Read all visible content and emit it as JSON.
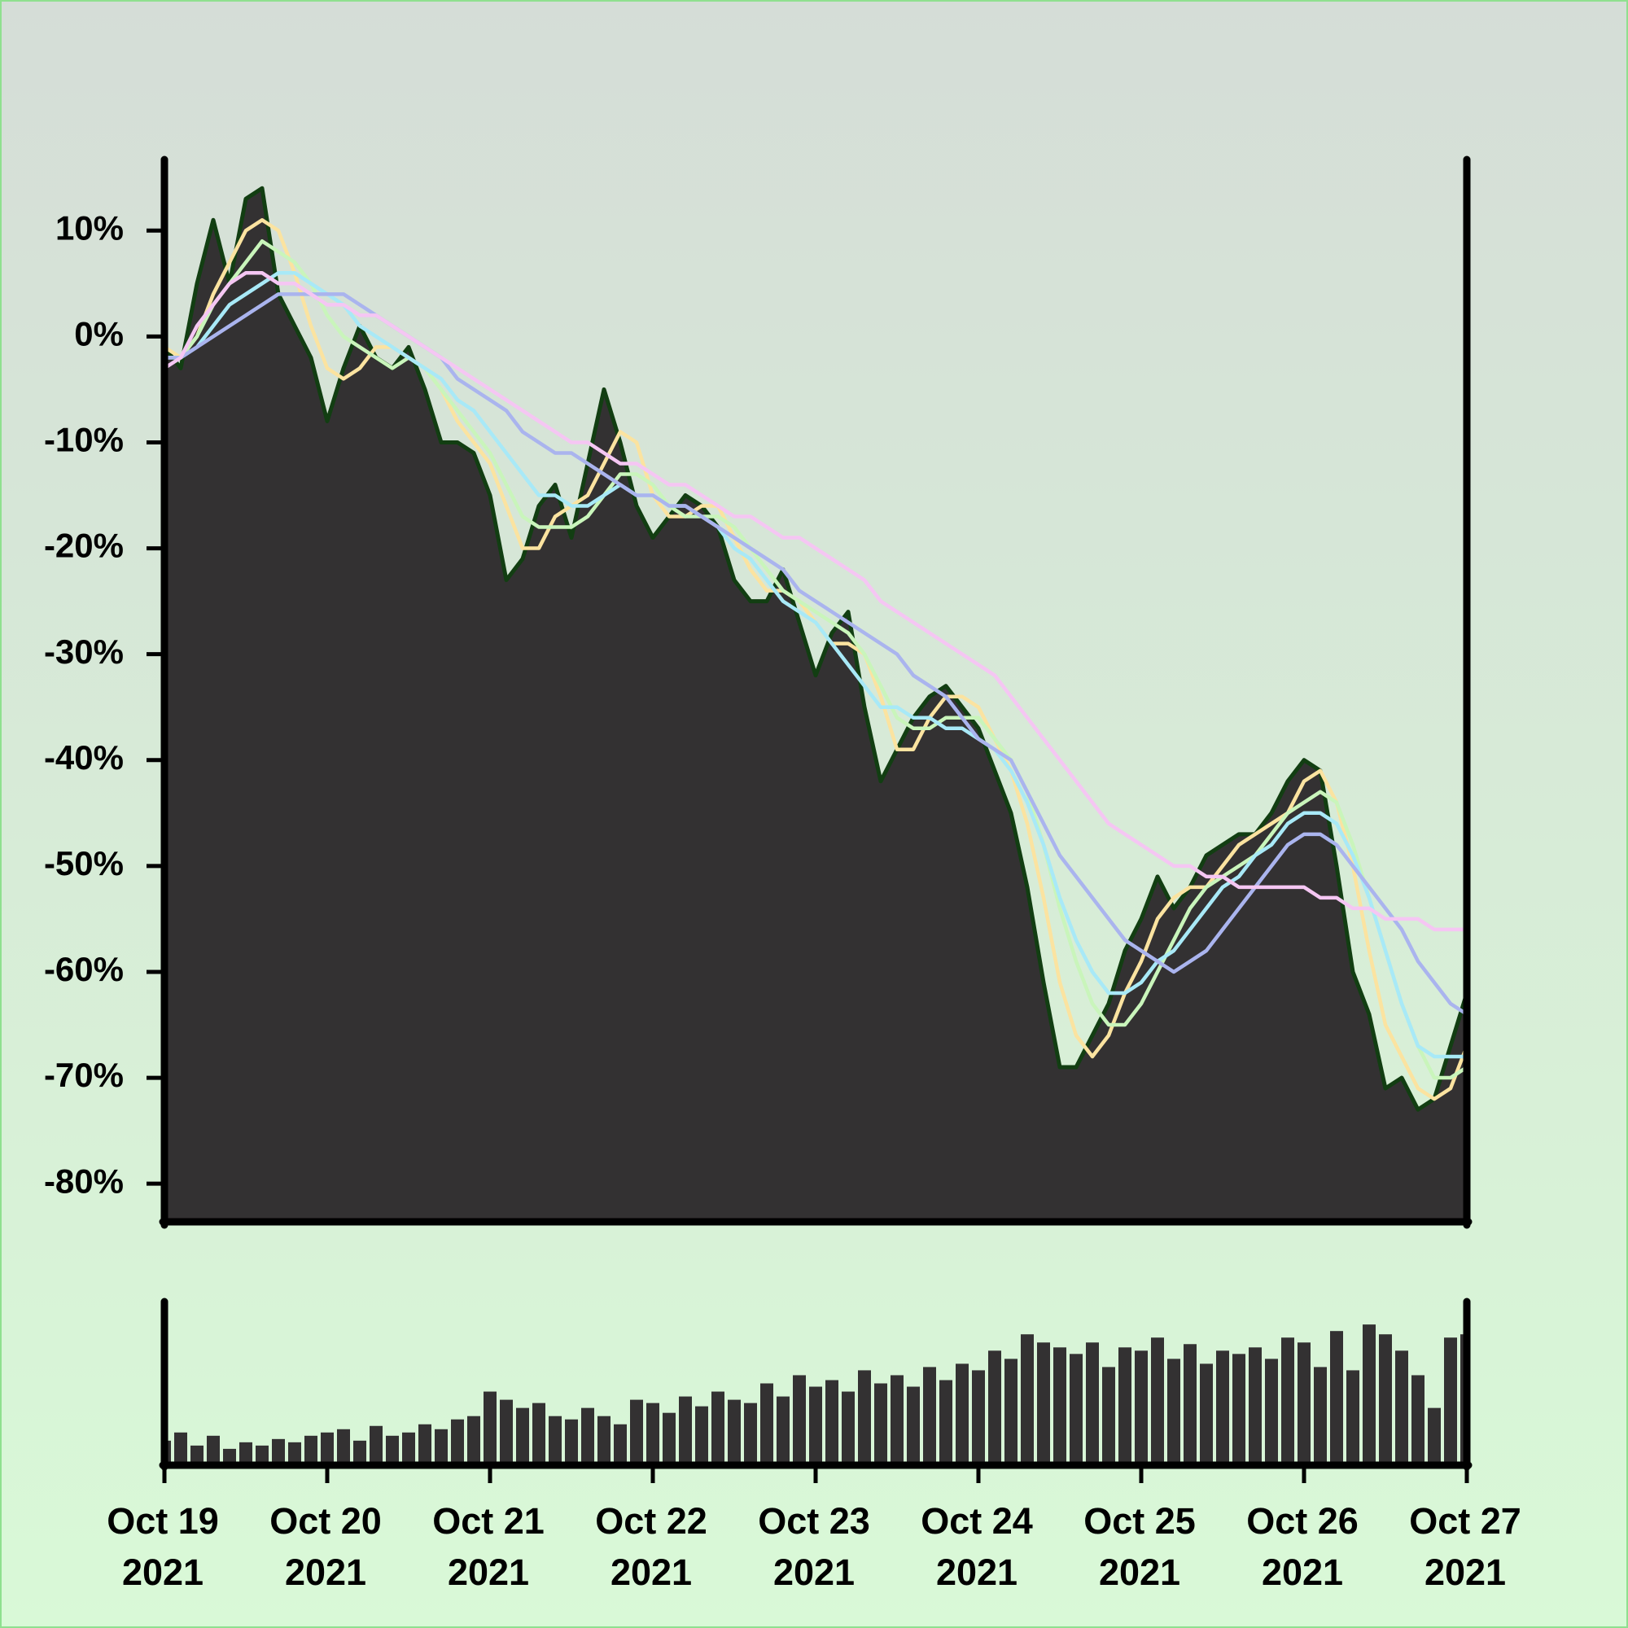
{
  "chart_data": {
    "type": "area",
    "x": [
      0,
      0.1,
      0.2,
      0.3,
      0.4,
      0.5,
      0.6,
      0.7,
      0.8,
      0.9,
      1,
      1.1,
      1.2,
      1.3,
      1.4,
      1.5,
      1.6,
      1.7,
      1.8,
      1.9,
      2,
      2.1,
      2.2,
      2.3,
      2.4,
      2.5,
      2.6,
      2.7,
      2.8,
      2.9,
      3,
      3.1,
      3.2,
      3.3,
      3.4,
      3.5,
      3.6,
      3.7,
      3.8,
      3.9,
      4,
      4.1,
      4.2,
      4.3,
      4.4,
      4.5,
      4.6,
      4.7,
      4.8,
      4.9,
      5,
      5.1,
      5.2,
      5.3,
      5.4,
      5.5,
      5.6,
      5.7,
      5.8,
      5.9,
      6,
      6.1,
      6.2,
      6.3,
      6.4,
      6.5,
      6.6,
      6.7,
      6.8,
      6.9,
      7,
      7.1,
      7.2,
      7.3,
      7.4,
      7.5,
      7.6,
      7.7,
      7.8,
      7.9,
      8
    ],
    "values": [
      -1,
      -3,
      5,
      11,
      5,
      13,
      14,
      4,
      1,
      -2,
      -8,
      -3,
      1,
      -2,
      -3,
      -1,
      -5,
      -10,
      -10,
      -11,
      -15,
      -23,
      -21,
      -16,
      -14,
      -19,
      -12,
      -5,
      -10,
      -16,
      -19,
      -17,
      -15,
      -16,
      -18,
      -23,
      -25,
      -25,
      -22,
      -27,
      -32,
      -28,
      -26,
      -35,
      -42,
      -39,
      -36,
      -34,
      -33,
      -35,
      -37,
      -41,
      -45,
      -52,
      -61,
      -69,
      -69,
      -66,
      -63,
      -58,
      -55,
      -51,
      -54,
      -52,
      -49,
      -48,
      -47,
      -47,
      -45,
      -42,
      -40,
      -41,
      -50,
      -60,
      -64,
      -71,
      -70,
      -73,
      -72,
      -67,
      -62
    ],
    "color": "#333132",
    "line_color": "#123e12",
    "series": [
      {
        "color": "#fbe3a0",
        "values": [
          -1,
          -2,
          0,
          4,
          7,
          10,
          11,
          10,
          6,
          1,
          -3,
          -4,
          -3,
          -1,
          -1,
          -2,
          -3,
          -5,
          -8,
          -10,
          -12,
          -16,
          -20,
          -20,
          -17,
          -16,
          -15,
          -12,
          -9,
          -10,
          -15,
          -17,
          -17,
          -16,
          -16,
          -19,
          -22,
          -24,
          -24,
          -25,
          -27,
          -29,
          -29,
          -30,
          -34,
          -39,
          -39,
          -36,
          -34,
          -34,
          -35,
          -38,
          -41,
          -46,
          -53,
          -61,
          -66,
          -68,
          -66,
          -62,
          -59,
          -55,
          -53,
          -52,
          -52,
          -50,
          -48,
          -47,
          -46,
          -45,
          -42,
          -41,
          -44,
          -50,
          -58,
          -65,
          -68,
          -71,
          -72,
          -71,
          -67
        ]
      },
      {
        "color": "#c9f5bb",
        "values": [
          -2,
          -2,
          0,
          3,
          5,
          7,
          9,
          8,
          7,
          5,
          2,
          0,
          -1,
          -2,
          -3,
          -2,
          -3,
          -5,
          -7,
          -9,
          -11,
          -14,
          -17,
          -18,
          -18,
          -18,
          -17,
          -15,
          -13,
          -13,
          -14,
          -16,
          -17,
          -17,
          -17,
          -18,
          -20,
          -22,
          -24,
          -25,
          -26,
          -27,
          -28,
          -30,
          -33,
          -36,
          -37,
          -37,
          -36,
          -36,
          -36,
          -38,
          -40,
          -43,
          -48,
          -54,
          -59,
          -63,
          -65,
          -65,
          -63,
          -60,
          -57,
          -54,
          -52,
          -51,
          -50,
          -49,
          -47,
          -45,
          -44,
          -43,
          -44,
          -48,
          -53,
          -58,
          -63,
          -67,
          -70,
          -70,
          -69
        ]
      },
      {
        "color": "#a8e9f7",
        "values": [
          -2,
          -2,
          -1,
          1,
          3,
          4,
          5,
          6,
          6,
          5,
          4,
          3,
          1,
          0,
          -1,
          -2,
          -3,
          -4,
          -6,
          -7,
          -9,
          -11,
          -13,
          -15,
          -15,
          -16,
          -16,
          -15,
          -14,
          -15,
          -15,
          -16,
          -16,
          -17,
          -18,
          -20,
          -21,
          -23,
          -25,
          -26,
          -27,
          -29,
          -31,
          -33,
          -35,
          -35,
          -36,
          -36,
          -37,
          -37,
          -38,
          -39,
          -41,
          -44,
          -48,
          -53,
          -57,
          -60,
          -62,
          -62,
          -61,
          -59,
          -58,
          -56,
          -54,
          -52,
          -51,
          -49,
          -48,
          -46,
          -45,
          -45,
          -46,
          -49,
          -53,
          -58,
          -63,
          -67,
          -68,
          -68,
          -68
        ]
      },
      {
        "color": "#aab4ee",
        "values": [
          -2,
          -2,
          -1,
          0,
          1,
          2,
          3,
          4,
          4,
          4,
          4,
          4,
          3,
          2,
          1,
          0,
          -1,
          -2,
          -4,
          -5,
          -6,
          -7,
          -9,
          -10,
          -11,
          -11,
          -12,
          -13,
          -14,
          -15,
          -15,
          -16,
          -16,
          -17,
          -18,
          -19,
          -20,
          -21,
          -22,
          -24,
          -25,
          -26,
          -27,
          -28,
          -29,
          -30,
          -32,
          -33,
          -34,
          -36,
          -38,
          -39,
          -40,
          -43,
          -46,
          -49,
          -51,
          -53,
          -55,
          -57,
          -58,
          -59,
          -60,
          -59,
          -58,
          -56,
          -54,
          -52,
          -50,
          -48,
          -47,
          -47,
          -48,
          -50,
          -52,
          -54,
          -56,
          -59,
          -61,
          -63,
          -64
        ]
      },
      {
        "color": "#f5c6f3",
        "values": [
          -3,
          -2,
          1,
          3,
          5,
          6,
          6,
          5,
          5,
          4,
          3,
          3,
          2,
          2,
          1,
          0,
          -1,
          -2,
          -3,
          -4,
          -5,
          -6,
          -7,
          -8,
          -9,
          -10,
          -10,
          -11,
          -12,
          -12,
          -13,
          -14,
          -14,
          -15,
          -16,
          -17,
          -17,
          -18,
          -19,
          -19,
          -20,
          -21,
          -22,
          -23,
          -25,
          -26,
          -27,
          -28,
          -29,
          -30,
          -31,
          -32,
          -34,
          -36,
          -38,
          -40,
          -42,
          -44,
          -46,
          -47,
          -48,
          -49,
          -50,
          -50,
          -51,
          -51,
          -52,
          -52,
          -52,
          -52,
          -52,
          -53,
          -53,
          -54,
          -54,
          -55,
          -55,
          -55,
          -56,
          -56,
          -56
        ]
      }
    ],
    "volume": {
      "color": "#333132",
      "ylim": [
        0,
        100
      ],
      "values": [
        15,
        20,
        12,
        18,
        10,
        14,
        12,
        16,
        14,
        18,
        20,
        22,
        15,
        24,
        18,
        20,
        25,
        22,
        28,
        30,
        45,
        40,
        35,
        38,
        30,
        28,
        35,
        30,
        25,
        40,
        38,
        32,
        42,
        36,
        45,
        40,
        38,
        50,
        42,
        55,
        48,
        52,
        45,
        58,
        50,
        55,
        48,
        60,
        52,
        62,
        58,
        70,
        65,
        80,
        75,
        72,
        68,
        75,
        60,
        72,
        70,
        78,
        65,
        74,
        62,
        70,
        68,
        72,
        65,
        78,
        75,
        60,
        82,
        58,
        86,
        80,
        70,
        55,
        35,
        78,
        80
      ]
    },
    "xlim": [
      0,
      8
    ],
    "ylim": [
      -83.6,
      16.4
    ],
    "yticks": [
      {
        "value": 10,
        "label": "10%"
      },
      {
        "value": 0,
        "label": "0%"
      },
      {
        "value": -10,
        "label": "-10%"
      },
      {
        "value": -20,
        "label": "-20%"
      },
      {
        "value": -30,
        "label": "-30%"
      },
      {
        "value": -40,
        "label": "-40%"
      },
      {
        "value": -50,
        "label": "-50%"
      },
      {
        "value": -60,
        "label": "-60%"
      },
      {
        "value": -70,
        "label": "-70%"
      },
      {
        "value": -80,
        "label": "-80%"
      }
    ],
    "xticks": [
      {
        "value": 0,
        "label": "Oct 19 2021"
      },
      {
        "value": 1,
        "label": "Oct 20 2021"
      },
      {
        "value": 2,
        "label": "Oct 21 2021"
      },
      {
        "value": 3,
        "label": "Oct 22 2021"
      },
      {
        "value": 4,
        "label": "Oct 23 2021"
      },
      {
        "value": 5,
        "label": "Oct 24 2021"
      },
      {
        "value": 6,
        "label": "Oct 25 2021"
      },
      {
        "value": 7,
        "label": "Oct 26 2021"
      },
      {
        "value": 8,
        "label": "Oct 27 2021"
      }
    ]
  }
}
